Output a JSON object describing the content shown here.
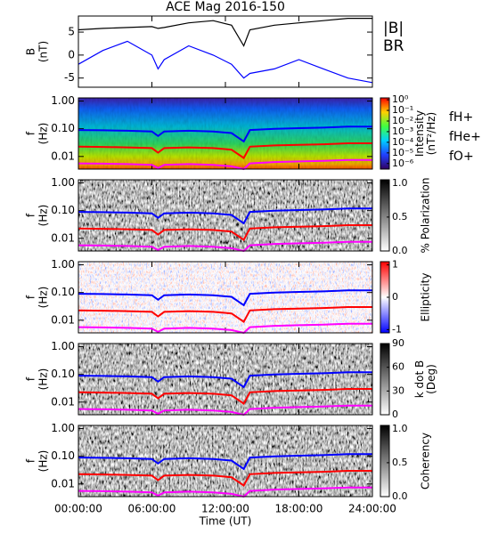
{
  "chart_data": [
    {
      "type": "line",
      "title": "ACE Mag 2016-150",
      "ylabel": [
        "B",
        "(nT)"
      ],
      "x": [
        0,
        2,
        4,
        6,
        6.5,
        7,
        9,
        11,
        12.5,
        13.5,
        14,
        16,
        18,
        20,
        22,
        24
      ],
      "xlim": [
        0,
        24
      ],
      "xticks": [
        0,
        6,
        12,
        18,
        24
      ],
      "ylim": [
        -7,
        8.5
      ],
      "yticks": [
        -5,
        0,
        5
      ],
      "series": [
        {
          "name": "|B|",
          "color": "#000000",
          "values": [
            5.5,
            5.8,
            6,
            6.2,
            5.8,
            6,
            7,
            7.5,
            6.5,
            2,
            5.5,
            6.5,
            7,
            7.5,
            8,
            8
          ]
        },
        {
          "name": "BR",
          "color": "#0000ff",
          "values": [
            -2,
            1,
            3,
            0,
            -3,
            -1,
            2,
            0,
            -2,
            -5,
            -4,
            -3,
            -1,
            -3,
            -5,
            -6
          ]
        }
      ]
    },
    {
      "type": "spectrogram",
      "ylabel": [
        "f",
        "(Hz)"
      ],
      "log_y": true,
      "colormap": "rainbow",
      "legend": true,
      "x": [
        0,
        2,
        4,
        6,
        6.5,
        7,
        9,
        11,
        12.5,
        13.5,
        14,
        16,
        18,
        20,
        22,
        24
      ],
      "xlim": [
        0,
        24
      ],
      "xticks": [
        0,
        6,
        12,
        18,
        24
      ],
      "ylim": [
        0.0035,
        1.3
      ],
      "yticks": [
        {
          "value": 1,
          "label": "1.00"
        },
        {
          "value": 0.1,
          "label": "0.10"
        },
        {
          "value": 0.01,
          "label": "0.01"
        }
      ],
      "colorbar": {
        "label": [
          "Intensity",
          "(nT²/Hz)"
        ],
        "log": true,
        "lim": [
          3e-07,
          1.5
        ],
        "ticks": [
          {
            "value": 1,
            "label": "10⁰"
          },
          {
            "value": 0.1,
            "label": "10⁻¹"
          },
          {
            "value": 0.01,
            "label": "10⁻²"
          },
          {
            "value": 0.001,
            "label": "10⁻³"
          },
          {
            "value": 0.0001,
            "label": "10⁻⁴"
          },
          {
            "value": 1e-05,
            "label": "10⁻⁵"
          },
          {
            "value": 1e-06,
            "label": "10⁻⁶"
          }
        ]
      },
      "series": [
        {
          "name": "fH+",
          "color": "#0000ff",
          "values": [
            0.09,
            0.088,
            0.085,
            0.08,
            0.055,
            0.08,
            0.085,
            0.08,
            0.07,
            0.035,
            0.09,
            0.1,
            0.105,
            0.11,
            0.12,
            0.12
          ]
        },
        {
          "name": "fHe+",
          "color": "#ff0000",
          "values": [
            0.0225,
            0.022,
            0.0213,
            0.02,
            0.0138,
            0.02,
            0.0213,
            0.02,
            0.0175,
            0.0088,
            0.0225,
            0.025,
            0.0263,
            0.0275,
            0.03,
            0.03
          ]
        },
        {
          "name": "fO+",
          "color": "#ff00ff",
          "values": [
            0.0056,
            0.0055,
            0.0053,
            0.005,
            0.0038,
            0.005,
            0.0053,
            0.005,
            0.0044,
            0.0035,
            0.0056,
            0.0063,
            0.0066,
            0.0069,
            0.0075,
            0.0075
          ]
        }
      ]
    },
    {
      "type": "spectrogram",
      "ylabel": [
        "f",
        "(Hz)"
      ],
      "log_y": true,
      "colormap": "gray",
      "x": [
        0,
        2,
        4,
        6,
        6.5,
        7,
        9,
        11,
        12.5,
        13.5,
        14,
        16,
        18,
        20,
        22,
        24
      ],
      "xlim": [
        0,
        24
      ],
      "xticks": [
        0,
        6,
        12,
        18,
        24
      ],
      "ylim": [
        0.0035,
        1.3
      ],
      "yticks": [
        {
          "value": 1,
          "label": "1.00"
        },
        {
          "value": 0.1,
          "label": "0.10"
        },
        {
          "value": 0.01,
          "label": "0.01"
        }
      ],
      "colorbar": {
        "label": [
          "% Polarization"
        ],
        "lim": [
          0,
          1.05
        ],
        "ticks": [
          {
            "value": 0,
            "label": "0.0"
          },
          {
            "value": 0.5,
            "label": "0.5"
          },
          {
            "value": 1,
            "label": "1.0"
          }
        ]
      },
      "series": [
        {
          "name": "fH+",
          "color": "#0000ff",
          "values": [
            0.09,
            0.088,
            0.085,
            0.08,
            0.055,
            0.08,
            0.085,
            0.08,
            0.07,
            0.035,
            0.09,
            0.1,
            0.105,
            0.11,
            0.12,
            0.12
          ]
        },
        {
          "name": "fHe+",
          "color": "#ff0000",
          "values": [
            0.0225,
            0.022,
            0.0213,
            0.02,
            0.0138,
            0.02,
            0.0213,
            0.02,
            0.0175,
            0.0088,
            0.0225,
            0.025,
            0.0263,
            0.0275,
            0.03,
            0.03
          ]
        },
        {
          "name": "fO+",
          "color": "#ff00ff",
          "values": [
            0.0056,
            0.0055,
            0.0053,
            0.005,
            0.0038,
            0.005,
            0.0053,
            0.005,
            0.0044,
            0.0035,
            0.0056,
            0.0063,
            0.0066,
            0.0069,
            0.0075,
            0.0075
          ]
        }
      ]
    },
    {
      "type": "spectrogram",
      "ylabel": [
        "f",
        "(Hz)"
      ],
      "log_y": true,
      "colormap": "redblue",
      "x": [
        0,
        2,
        4,
        6,
        6.5,
        7,
        9,
        11,
        12.5,
        13.5,
        14,
        16,
        18,
        20,
        22,
        24
      ],
      "xlim": [
        0,
        24
      ],
      "xticks": [
        0,
        6,
        12,
        18,
        24
      ],
      "ylim": [
        0.0035,
        1.3
      ],
      "yticks": [
        {
          "value": 1,
          "label": "1.00"
        },
        {
          "value": 0.1,
          "label": "0.10"
        },
        {
          "value": 0.01,
          "label": "0.01"
        }
      ],
      "colorbar": {
        "label": [
          "Ellipticity"
        ],
        "lim": [
          -1.1,
          1.1
        ],
        "ticks": [
          -1,
          0,
          1
        ]
      },
      "series": [
        {
          "name": "fH+",
          "color": "#0000ff",
          "values": [
            0.09,
            0.088,
            0.085,
            0.08,
            0.055,
            0.08,
            0.085,
            0.08,
            0.07,
            0.035,
            0.09,
            0.1,
            0.105,
            0.11,
            0.12,
            0.12
          ]
        },
        {
          "name": "fHe+",
          "color": "#ff0000",
          "values": [
            0.0225,
            0.022,
            0.0213,
            0.02,
            0.0138,
            0.02,
            0.0213,
            0.02,
            0.0175,
            0.0088,
            0.0225,
            0.025,
            0.0263,
            0.0275,
            0.03,
            0.03
          ]
        },
        {
          "name": "fO+",
          "color": "#ff00ff",
          "values": [
            0.0056,
            0.0055,
            0.0053,
            0.005,
            0.0038,
            0.005,
            0.0053,
            0.005,
            0.0044,
            0.0035,
            0.0056,
            0.0063,
            0.0066,
            0.0069,
            0.0075,
            0.0075
          ]
        }
      ]
    },
    {
      "type": "spectrogram",
      "ylabel": [
        "f",
        "(Hz)"
      ],
      "log_y": true,
      "colormap": "gray",
      "x": [
        0,
        2,
        4,
        6,
        6.5,
        7,
        9,
        11,
        12.5,
        13.5,
        14,
        16,
        18,
        20,
        22,
        24
      ],
      "xlim": [
        0,
        24
      ],
      "xticks": [
        0,
        6,
        12,
        18,
        24
      ],
      "ylim": [
        0.0035,
        1.3
      ],
      "yticks": [
        {
          "value": 1,
          "label": "1.00"
        },
        {
          "value": 0.1,
          "label": "0.10"
        },
        {
          "value": 0.01,
          "label": "0.01"
        }
      ],
      "colorbar": {
        "label": [
          "k dot B",
          "(Deg)"
        ],
        "lim": [
          0,
          90
        ],
        "ticks": [
          0,
          30,
          60,
          90
        ]
      },
      "series": [
        {
          "name": "fH+",
          "color": "#0000ff",
          "values": [
            0.09,
            0.088,
            0.085,
            0.08,
            0.055,
            0.08,
            0.085,
            0.08,
            0.07,
            0.035,
            0.09,
            0.1,
            0.105,
            0.11,
            0.12,
            0.12
          ]
        },
        {
          "name": "fHe+",
          "color": "#ff0000",
          "values": [
            0.0225,
            0.022,
            0.0213,
            0.02,
            0.0138,
            0.02,
            0.0213,
            0.02,
            0.0175,
            0.0088,
            0.0225,
            0.025,
            0.0263,
            0.0275,
            0.03,
            0.03
          ]
        },
        {
          "name": "fO+",
          "color": "#ff00ff",
          "values": [
            0.0056,
            0.0055,
            0.0053,
            0.005,
            0.0038,
            0.005,
            0.0053,
            0.005,
            0.0044,
            0.0035,
            0.0056,
            0.0063,
            0.0066,
            0.0069,
            0.0075,
            0.0075
          ]
        }
      ]
    },
    {
      "type": "spectrogram",
      "ylabel": [
        "f",
        "(Hz)"
      ],
      "log_y": true,
      "colormap": "gray",
      "xlabel": "Time (UT)",
      "x": [
        0,
        2,
        4,
        6,
        6.5,
        7,
        9,
        11,
        12.5,
        13.5,
        14,
        16,
        18,
        20,
        22,
        24
      ],
      "xlim": [
        0,
        24
      ],
      "xticks": [
        {
          "value": 0,
          "label": "00:00:00"
        },
        {
          "value": 6,
          "label": "06:00:00"
        },
        {
          "value": 12,
          "label": "12:00:00"
        },
        {
          "value": 18,
          "label": "18:00:00"
        },
        {
          "value": 24,
          "label": "24:00:00"
        }
      ],
      "ylim": [
        0.0035,
        1.3
      ],
      "yticks": [
        {
          "value": 1,
          "label": "1.00"
        },
        {
          "value": 0.1,
          "label": "0.10"
        },
        {
          "value": 0.01,
          "label": "0.01"
        }
      ],
      "colorbar": {
        "label": [
          "Coherency"
        ],
        "lim": [
          0,
          1.05
        ],
        "ticks": [
          {
            "value": 0,
            "label": "0.0"
          },
          {
            "value": 0.5,
            "label": "0.5"
          },
          {
            "value": 1,
            "label": "1.0"
          }
        ]
      },
      "series": [
        {
          "name": "fH+",
          "color": "#0000ff",
          "values": [
            0.09,
            0.088,
            0.085,
            0.08,
            0.055,
            0.08,
            0.085,
            0.08,
            0.07,
            0.035,
            0.09,
            0.1,
            0.105,
            0.11,
            0.12,
            0.12
          ]
        },
        {
          "name": "fHe+",
          "color": "#ff0000",
          "values": [
            0.0225,
            0.022,
            0.0213,
            0.02,
            0.0138,
            0.02,
            0.0213,
            0.02,
            0.0175,
            0.0088,
            0.0225,
            0.025,
            0.0263,
            0.0275,
            0.03,
            0.03
          ]
        },
        {
          "name": "fO+",
          "color": "#ff00ff",
          "values": [
            0.0056,
            0.0055,
            0.0053,
            0.005,
            0.0038,
            0.005,
            0.0053,
            0.005,
            0.0044,
            0.0035,
            0.0056,
            0.0063,
            0.0066,
            0.0069,
            0.0075,
            0.0075
          ]
        }
      ]
    }
  ]
}
